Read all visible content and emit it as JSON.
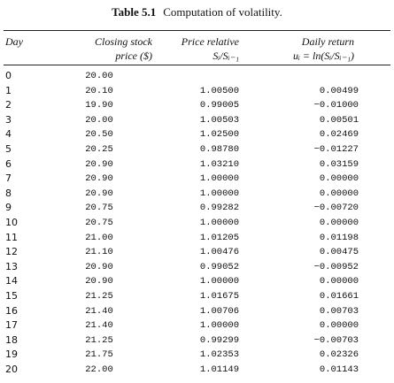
{
  "table": {
    "label": "Table 5.1",
    "caption": "Computation of volatility.",
    "headers": [
      [
        "Day"
      ],
      [
        "Closing stock",
        "price ($)"
      ],
      [
        "Price relative",
        "Sᵢ/Sᵢ₋₁"
      ],
      [
        "Daily return",
        "uᵢ = ln(Sᵢ/Sᵢ₋₁)"
      ]
    ],
    "rows": [
      [
        "0",
        "20.00"
      ],
      [
        "1",
        "20.10",
        "1.00500",
        "0.00499"
      ],
      [
        "2",
        "19.90",
        "0.99005",
        "−0.01000"
      ],
      [
        "3",
        "20.00",
        "1.00503",
        "0.00501"
      ],
      [
        "4",
        "20.50",
        "1.02500",
        "0.02469"
      ],
      [
        "5",
        "20.25",
        "0.98780",
        "−0.01227"
      ],
      [
        "6",
        "20.90",
        "1.03210",
        "0.03159"
      ],
      [
        "7",
        "20.90",
        "1.00000",
        "0.00000"
      ],
      [
        "8",
        "20.90",
        "1.00000",
        "0.00000"
      ],
      [
        "9",
        "20.75",
        "0.99282",
        "−0.00720"
      ],
      [
        "10",
        "20.75",
        "1.00000",
        "0.00000"
      ],
      [
        "11",
        "21.00",
        "1.01205",
        "0.01198"
      ],
      [
        "12",
        "21.10",
        "1.00476",
        "0.00475"
      ],
      [
        "13",
        "20.90",
        "0.99052",
        "−0.00952"
      ],
      [
        "14",
        "20.90",
        "1.00000",
        "0.00000"
      ],
      [
        "15",
        "21.25",
        "1.01675",
        "0.01661"
      ],
      [
        "16",
        "21.40",
        "1.00706",
        "0.00703"
      ],
      [
        "17",
        "21.40",
        "1.00000",
        "0.00000"
      ],
      [
        "18",
        "21.25",
        "0.99299",
        "−0.00703"
      ],
      [
        "19",
        "21.75",
        "1.02353",
        "0.02326"
      ],
      [
        "20",
        "22.00",
        "1.01149",
        "0.01143"
      ]
    ]
  }
}
